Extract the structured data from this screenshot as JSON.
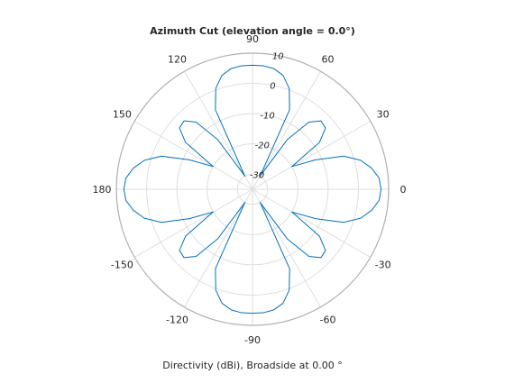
{
  "chart_data": {
    "type": "polar-line",
    "title": "Azimuth Cut (elevation angle = 0.0°)",
    "xlabel": "Directivity (dBi), Broadside at 0.00 °",
    "angle_ticks": [
      0,
      30,
      60,
      90,
      120,
      150,
      180,
      -150,
      -120,
      -90,
      -60,
      -30
    ],
    "radial_tick_labels": [
      "10",
      "0",
      "-10",
      "-20",
      "-30"
    ],
    "radial_range_dbi": [
      -35,
      10
    ],
    "radial_tick_angle_deg": 80,
    "grid": true,
    "series": [
      {
        "color": "#0072bd",
        "azimuth_deg": [
          0,
          5,
          10,
          15,
          20,
          25,
          30,
          35,
          40,
          45,
          50,
          55,
          60,
          65,
          70,
          75,
          80,
          85,
          90,
          95,
          100,
          105,
          110,
          115,
          120,
          125,
          130,
          135,
          140,
          145,
          150,
          155,
          160,
          165,
          170,
          175,
          180,
          185,
          190,
          195,
          200,
          205,
          210,
          215,
          220,
          225,
          230,
          235,
          240,
          245,
          250,
          255,
          260,
          265,
          270,
          275,
          280,
          285,
          290,
          295,
          300,
          305,
          310,
          315,
          320,
          325,
          330,
          335,
          340,
          345,
          350,
          355,
          360
        ],
        "directivity_dbi": [
          7.5,
          7.0,
          5.0,
          2.0,
          -3.0,
          -12.0,
          -20.0,
          -8.0,
          -3.5,
          -3.0,
          -6.0,
          -15.0,
          -30.0,
          -6.0,
          0.5,
          4.0,
          5.5,
          6.0,
          6.0,
          6.0,
          5.5,
          4.0,
          0.5,
          -6.0,
          -30.0,
          -15.0,
          -6.0,
          -3.0,
          -3.5,
          -8.0,
          -20.0,
          -12.0,
          -3.0,
          2.0,
          5.0,
          7.0,
          7.5,
          7.0,
          5.0,
          2.0,
          -3.0,
          -12.0,
          -20.0,
          -8.0,
          -3.5,
          -3.0,
          -6.0,
          -15.0,
          -30.0,
          -6.0,
          0.5,
          4.0,
          5.5,
          6.0,
          6.0,
          6.0,
          5.5,
          4.0,
          0.5,
          -6.0,
          -30.0,
          -15.0,
          -6.0,
          -3.0,
          -3.5,
          -8.0,
          -20.0,
          -12.0,
          -3.0,
          2.0,
          5.0,
          7.0,
          7.5
        ]
      }
    ]
  }
}
